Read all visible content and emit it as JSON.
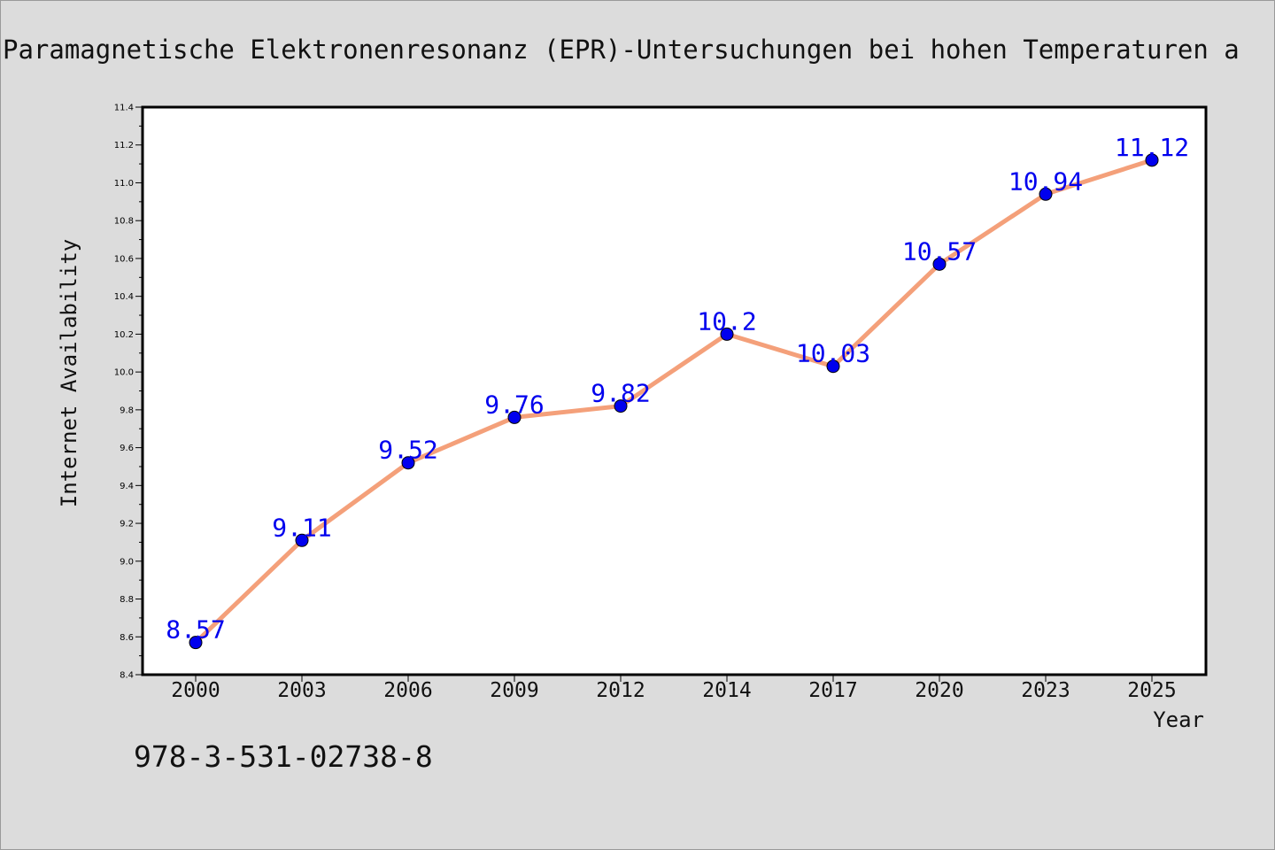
{
  "chart_data": {
    "type": "line",
    "title": "Paramagnetische Elektronenresonanz (EPR)-Untersuchungen bei hohen Temperaturen a",
    "xlabel": "Year",
    "ylabel": "Internet Availability",
    "categories": [
      "2000",
      "2003",
      "2006",
      "2009",
      "2012",
      "2014",
      "2017",
      "2020",
      "2023",
      "2025"
    ],
    "values": [
      8.57,
      9.11,
      9.52,
      9.76,
      9.82,
      10.2,
      10.03,
      10.57,
      10.94,
      11.12
    ],
    "data_labels": [
      "8.57",
      "9.11",
      "9.52",
      "9.76",
      "9.82",
      "10.2",
      "10.03",
      "10.57",
      "10.94",
      "11.12"
    ],
    "ylim": [
      8.4,
      11.4
    ],
    "yticks": [
      "8.4",
      "8.6",
      "8.8",
      "9.0",
      "9.2",
      "9.4",
      "9.6",
      "9.8",
      "10.0",
      "10.2",
      "10.4",
      "10.6",
      "10.8",
      "11.0",
      "11.2",
      "11.4"
    ],
    "grid": false,
    "line_color": "#f4a07a",
    "marker_color": "#0000ee",
    "label_color": "#0000ee"
  },
  "footer": {
    "isbn": "978-3-531-02738-8"
  }
}
